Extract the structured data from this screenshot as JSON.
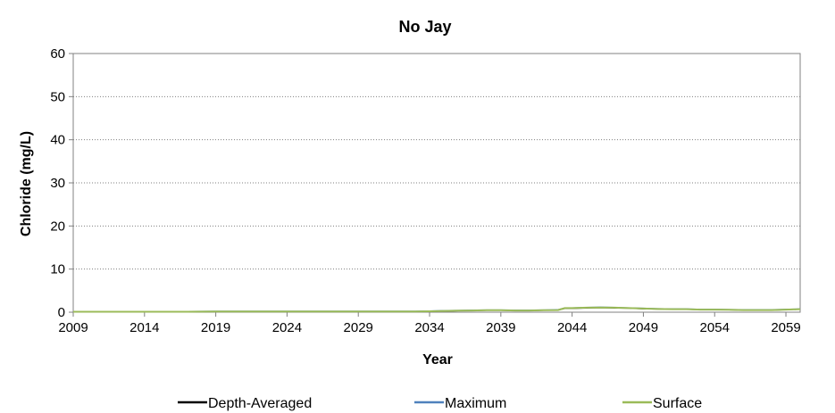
{
  "chart_data": {
    "type": "line",
    "title": "No Jay",
    "xlabel": "Year",
    "ylabel": "Chloride (mg/L)",
    "xlim": [
      2009,
      2060
    ],
    "ylim": [
      0,
      60
    ],
    "x_ticks": [
      "2009",
      "2014",
      "2019",
      "2024",
      "2029",
      "2034",
      "2039",
      "2044",
      "2049",
      "2054",
      "2059"
    ],
    "y_ticks": [
      "0",
      "10",
      "20",
      "30",
      "40",
      "50",
      "60"
    ],
    "grid": true,
    "legend_position": "bottom",
    "x": [
      2009,
      2011,
      2013,
      2015,
      2017,
      2019,
      2021,
      2023,
      2025,
      2027,
      2029,
      2031,
      2033,
      2034,
      2035,
      2036,
      2037,
      2038,
      2039,
      2040,
      2041,
      2042,
      2043,
      2043.5,
      2044,
      2045,
      2046,
      2047,
      2048,
      2049,
      2050,
      2051,
      2052,
      2053,
      2054,
      2055,
      2056,
      2057,
      2058,
      2059,
      2060
    ],
    "series": [
      {
        "name": "Depth-Averaged",
        "color": "#000000",
        "values": [
          0.1,
          0.1,
          0.1,
          0.1,
          0.1,
          0.15,
          0.15,
          0.15,
          0.15,
          0.15,
          0.15,
          0.15,
          0.15,
          0.2,
          0.3,
          0.35,
          0.4,
          0.45,
          0.45,
          0.4,
          0.4,
          0.45,
          0.5,
          0.9,
          0.9,
          1.0,
          1.05,
          1.0,
          0.95,
          0.8,
          0.75,
          0.7,
          0.7,
          0.6,
          0.6,
          0.55,
          0.5,
          0.5,
          0.5,
          0.6,
          0.7
        ]
      },
      {
        "name": "Maximum",
        "color": "#4f81bd",
        "values": [
          0.15,
          0.15,
          0.15,
          0.15,
          0.15,
          0.2,
          0.2,
          0.2,
          0.2,
          0.2,
          0.2,
          0.2,
          0.2,
          0.25,
          0.35,
          0.4,
          0.45,
          0.5,
          0.5,
          0.45,
          0.45,
          0.5,
          0.55,
          1.0,
          1.0,
          1.1,
          1.15,
          1.1,
          1.0,
          0.9,
          0.8,
          0.75,
          0.75,
          0.65,
          0.65,
          0.6,
          0.55,
          0.55,
          0.55,
          0.65,
          0.75
        ]
      },
      {
        "name": "Surface",
        "color": "#9bbb59",
        "values": [
          0.1,
          0.1,
          0.1,
          0.1,
          0.1,
          0.15,
          0.15,
          0.15,
          0.15,
          0.15,
          0.15,
          0.15,
          0.15,
          0.2,
          0.3,
          0.35,
          0.4,
          0.45,
          0.45,
          0.4,
          0.4,
          0.45,
          0.5,
          0.95,
          0.95,
          1.05,
          1.1,
          1.05,
          0.95,
          0.85,
          0.75,
          0.7,
          0.7,
          0.6,
          0.6,
          0.55,
          0.5,
          0.5,
          0.5,
          0.6,
          0.7
        ]
      }
    ]
  }
}
